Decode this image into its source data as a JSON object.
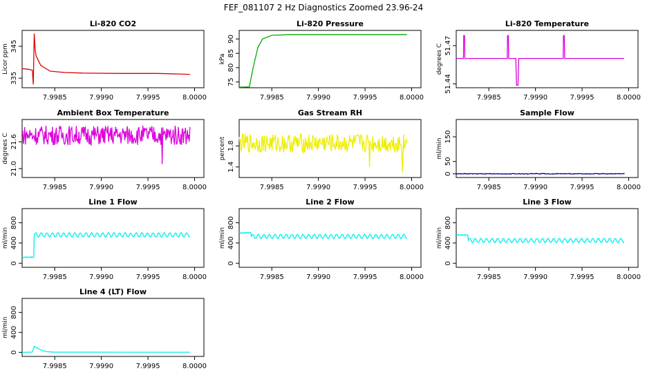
{
  "page_title": "FEF_081107  2 Hz Diagnostics Zoomed 23.96-24",
  "chart_data": [
    {
      "id": "co2",
      "type": "line",
      "title": "Li-820 CO2",
      "ylabel": "Licor ppm",
      "color": "#dd0000",
      "xlim": [
        7.99815,
        8.0001
      ],
      "ylim": [
        332,
        350
      ],
      "xticks": [
        "7.9985",
        "7.9990",
        "7.9995",
        "8.0000"
      ],
      "yticks": [
        "335",
        "345"
      ],
      "series_desc": "baseline near 338; sharp spike to 349 at 7.99828 then decay to ~336.5",
      "points": [
        [
          7.99815,
          338
        ],
        [
          7.99822,
          337.8
        ],
        [
          7.99826,
          337.5
        ],
        [
          7.99827,
          333
        ],
        [
          7.99828,
          349
        ],
        [
          7.99829,
          344
        ],
        [
          7.9983,
          342
        ],
        [
          7.99835,
          339
        ],
        [
          7.99845,
          337.2
        ],
        [
          7.9986,
          336.8
        ],
        [
          7.9988,
          336.6
        ],
        [
          7.9992,
          336.5
        ],
        [
          7.9996,
          336.5
        ],
        [
          7.99995,
          336.2
        ]
      ]
    },
    {
      "id": "pressure",
      "type": "line",
      "title": "Li-820 Pressure",
      "ylabel": "kPa",
      "color": "#00aa00",
      "xlim": [
        7.99815,
        8.0001
      ],
      "ylim": [
        73,
        93
      ],
      "xticks": [
        "7.9985",
        "7.9990",
        "7.9995",
        "8.0000"
      ],
      "yticks": [
        "75",
        "80",
        "85",
        "90"
      ],
      "points": [
        [
          7.99815,
          73.2
        ],
        [
          7.99826,
          73.3
        ],
        [
          7.9983,
          80
        ],
        [
          7.99835,
          87
        ],
        [
          7.9984,
          90
        ],
        [
          7.9985,
          91.3
        ],
        [
          7.9987,
          91.5
        ],
        [
          7.99995,
          91.5
        ]
      ]
    },
    {
      "id": "licor_temp",
      "type": "line",
      "title": "Li-820 Temperature",
      "ylabel": "degrees C",
      "color": "#dd00dd",
      "xlim": [
        7.99815,
        8.0001
      ],
      "ylim": [
        51.437,
        51.482
      ],
      "xticks": [
        "7.9985",
        "7.9990",
        "7.9995",
        "8.0000"
      ],
      "yticks": [
        "51.44",
        "51.47"
      ],
      "baseline": 51.46,
      "events": [
        [
          7.998235,
          51.478
        ],
        [
          7.998705,
          51.478
        ],
        [
          7.998805,
          51.439
        ],
        [
          7.999305,
          51.478
        ]
      ]
    },
    {
      "id": "ambient_temp",
      "type": "line",
      "title": "Ambient Box Temperature",
      "ylabel": "degrees C",
      "color": "#dd00dd",
      "xlim": [
        7.99815,
        8.0001
      ],
      "ylim": [
        20.8,
        22.1
      ],
      "xticks": [
        "7.9985",
        "7.9990",
        "7.9995",
        "8.0000"
      ],
      "yticks": [
        "21.0",
        "21.6"
      ],
      "noise": {
        "center": 21.75,
        "amp": 0.22,
        "dips": [
          [
            7.99965,
            21.1
          ],
          [
            7.99997,
            20.9
          ]
        ]
      }
    },
    {
      "id": "rh",
      "type": "line",
      "title": "Gas Stream RH",
      "ylabel": "percent",
      "color": "#eeee00",
      "xlim": [
        7.99815,
        8.0001
      ],
      "ylim": [
        1.2,
        2.3
      ],
      "xticks": [
        "7.9985",
        "7.9990",
        "7.9995",
        "8.0000"
      ],
      "yticks": [
        "1.4",
        "1.8"
      ],
      "noise": {
        "center": 1.85,
        "amp": 0.18,
        "dips": [
          [
            7.99955,
            1.4
          ],
          [
            7.9999,
            1.3
          ]
        ]
      }
    },
    {
      "id": "sample_flow",
      "type": "line",
      "title": "Sample Flow",
      "ylabel": "ml/min",
      "color": "#000088",
      "xlim": [
        7.99815,
        8.0001
      ],
      "ylim": [
        -15,
        220
      ],
      "xticks": [
        "7.9985",
        "7.9990",
        "7.9995",
        "8.0000"
      ],
      "yticks": [
        "0",
        "50",
        "150"
      ],
      "value": 0
    },
    {
      "id": "line1",
      "type": "line",
      "title": "Line 1 Flow",
      "ylabel": "ml/min",
      "color": "#00eeee",
      "xlim": [
        7.99815,
        8.0001
      ],
      "ylim": [
        -80,
        1080
      ],
      "xticks": [
        "7.9985",
        "7.9990",
        "7.9995",
        "8.0000"
      ],
      "yticks": [
        "0",
        "400",
        "800"
      ],
      "osc": {
        "pre": 120,
        "step_x": 7.99828,
        "mean": 560,
        "amp": 40,
        "period": 6e-05
      }
    },
    {
      "id": "line2",
      "type": "line",
      "title": "Line 2 Flow",
      "ylabel": "ml/min",
      "color": "#00eeee",
      "xlim": [
        7.99815,
        8.0001
      ],
      "ylim": [
        -80,
        1080
      ],
      "xticks": [
        "7.9985",
        "7.9990",
        "7.9995",
        "8.0000"
      ],
      "yticks": [
        "0",
        "400",
        "800"
      ],
      "osc": {
        "pre": 600,
        "step_x": 7.99828,
        "mean": 530,
        "amp": 40,
        "period": 6e-05
      }
    },
    {
      "id": "line3",
      "type": "line",
      "title": "Line 3 Flow",
      "ylabel": "ml/min",
      "color": "#00eeee",
      "xlim": [
        7.99815,
        8.0001
      ],
      "ylim": [
        -80,
        1080
      ],
      "xticks": [
        "7.9985",
        "7.9990",
        "7.9995",
        "8.0000"
      ],
      "yticks": [
        "0",
        "400",
        "800"
      ],
      "osc": {
        "pre": 560,
        "step_x": 7.99828,
        "mean": 450,
        "amp": 40,
        "period": 6e-05
      }
    },
    {
      "id": "line4",
      "type": "line",
      "title": "Line 4 (LT) Flow",
      "ylabel": "ml/min",
      "color": "#00eeee",
      "xlim": [
        7.99815,
        8.0001
      ],
      "ylim": [
        -80,
        1080
      ],
      "xticks": [
        "7.9985",
        "7.9990",
        "7.9995",
        "8.0000"
      ],
      "yticks": [
        "0",
        "400",
        "800"
      ],
      "points": [
        [
          7.99815,
          0
        ],
        [
          7.99826,
          5
        ],
        [
          7.99828,
          120
        ],
        [
          7.99832,
          80
        ],
        [
          7.99836,
          40
        ],
        [
          7.99842,
          15
        ],
        [
          7.9985,
          5
        ],
        [
          7.99995,
          3
        ]
      ]
    }
  ]
}
